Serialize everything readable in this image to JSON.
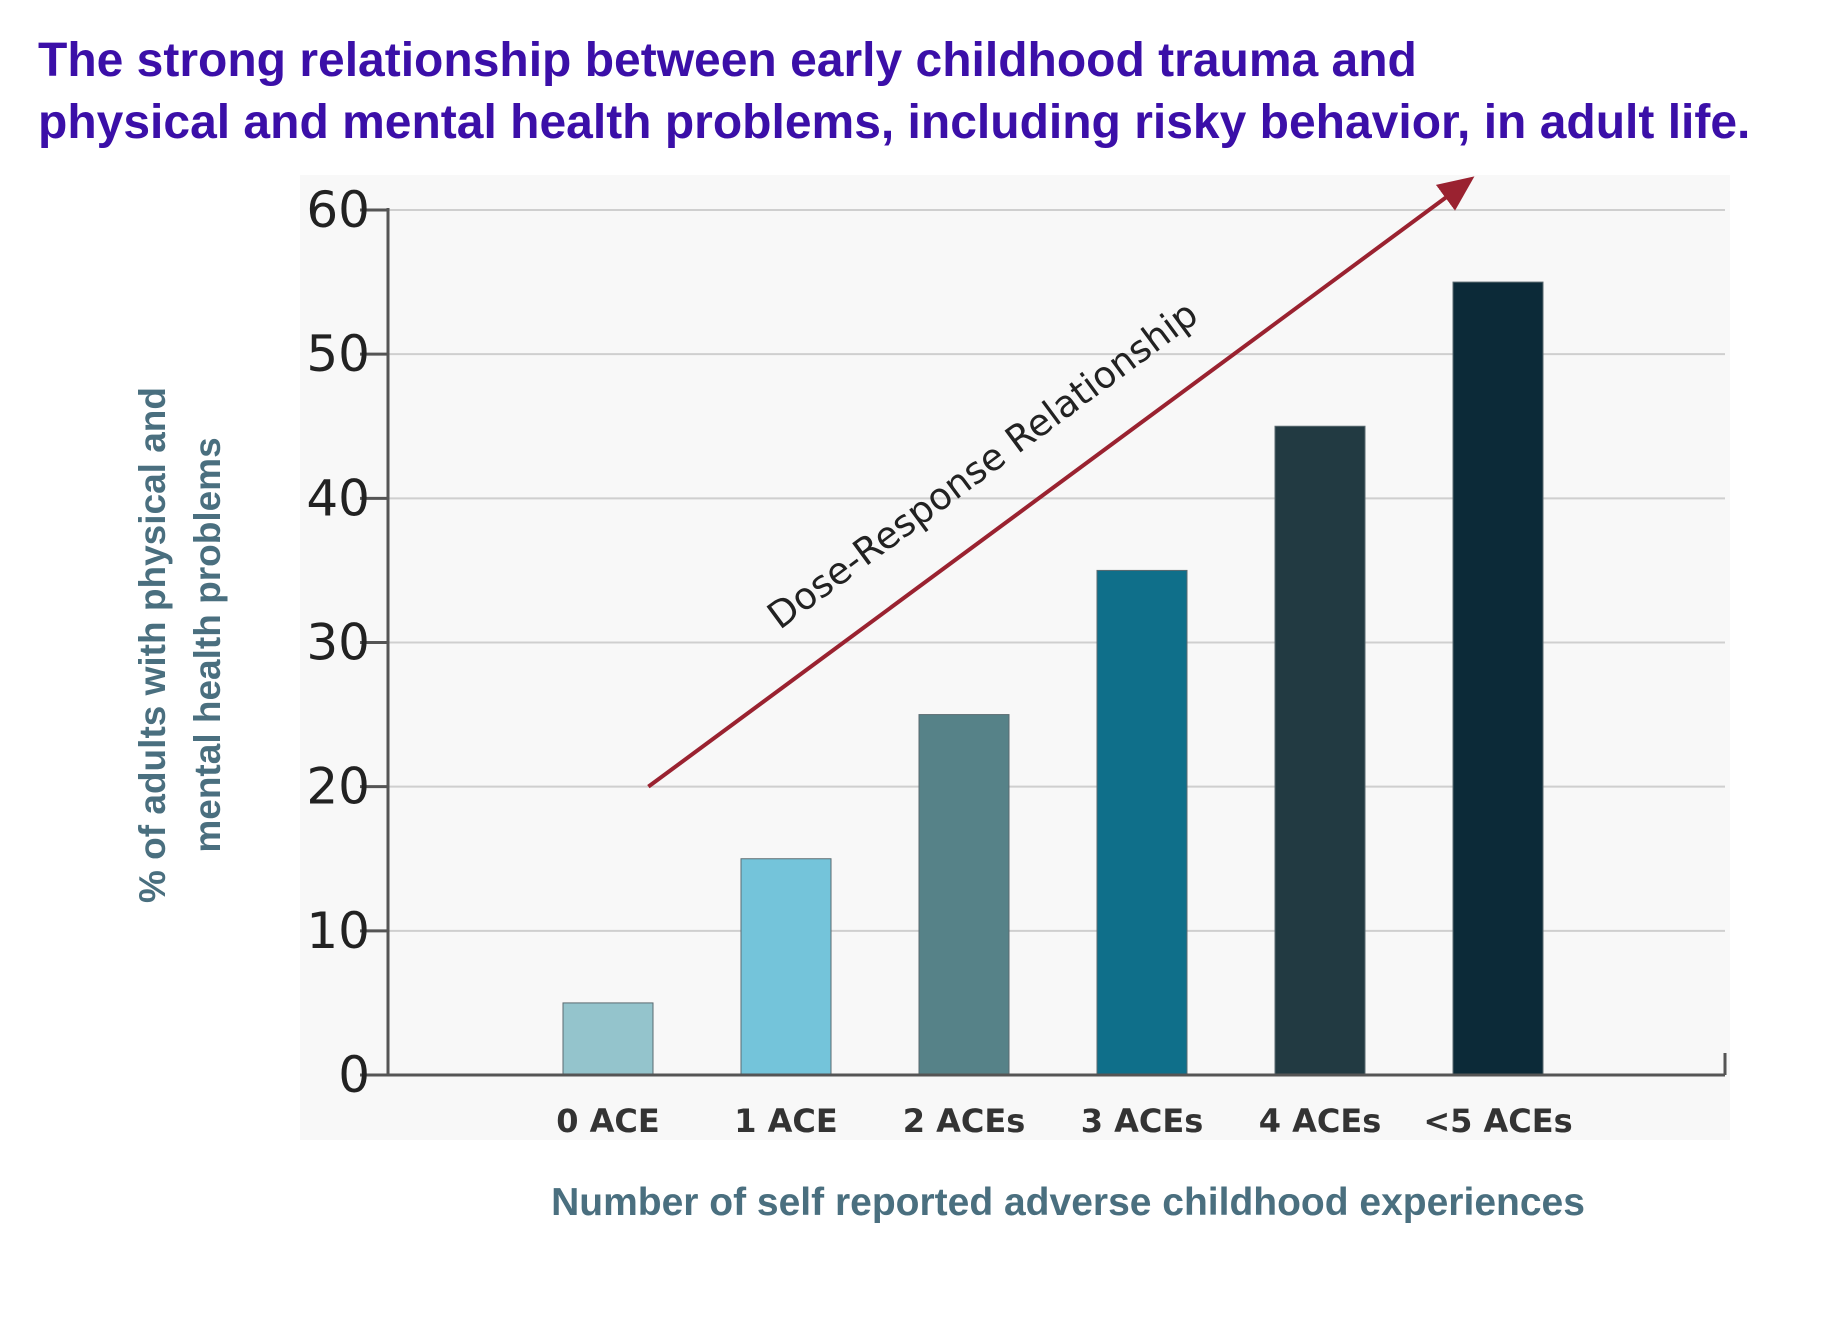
{
  "title_lines": [
    "The strong relationship between early childhood trauma and",
    "physical and mental health problems, including risky behavior, in adult life."
  ],
  "colors": {
    "title": "#3b0fa8",
    "axis_label": "#4a6f7f",
    "arrow": "#9a2230",
    "bars": [
      "#94c4cc",
      "#74c4da",
      "#568288",
      "#0f6f8a",
      "#223a42",
      "#0c2a38"
    ]
  },
  "chart_data": {
    "type": "bar",
    "title": "The strong relationship between early childhood trauma and physical and mental health problems, including risky behavior, in adult life.",
    "categories": [
      "0 ACE",
      "1 ACE",
      "2 ACEs",
      "3 ACEs",
      "4 ACEs",
      "<5 ACEs"
    ],
    "values": [
      5,
      15,
      25,
      35,
      45,
      55
    ],
    "xlabel": "Number of self reported adverse childhood experiences",
    "ylabel_lines": [
      "% of adults with physical and",
      "mental health  problems"
    ],
    "ylim": [
      0,
      60
    ],
    "yticks": [
      0,
      10,
      20,
      30,
      40,
      50,
      60
    ],
    "grid": true,
    "annotation": {
      "text": "Dose-Response Relationship",
      "type": "arrow",
      "from": {
        "category_index": 0.3,
        "y": 20
      },
      "to": {
        "category_index": 5,
        "y": 62
      }
    }
  }
}
